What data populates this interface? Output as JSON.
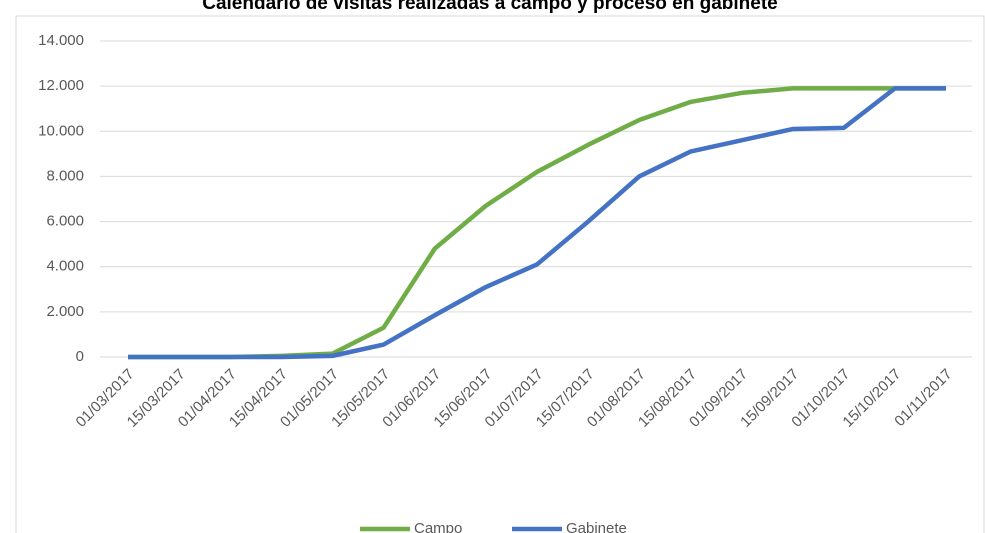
{
  "chart_data": {
    "type": "line",
    "title": "Calendario de visitas realizadas a campo y proceso en gabinete",
    "categories": [
      "01/03/2017",
      "15/03/2017",
      "01/04/2017",
      "15/04/2017",
      "01/05/2017",
      "15/05/2017",
      "01/06/2017",
      "15/06/2017",
      "01/07/2017",
      "15/07/2017",
      "01/08/2017",
      "15/08/2017",
      "01/09/2017",
      "15/09/2017",
      "01/10/2017",
      "15/10/2017",
      "01/11/2017"
    ],
    "series": [
      {
        "name": "Campo",
        "color": "#70ad47",
        "values": [
          0,
          0,
          0,
          50,
          150,
          1300,
          4800,
          6700,
          8200,
          9400,
          10500,
          11300,
          11700,
          11900,
          11900,
          11900,
          11900
        ]
      },
      {
        "name": "Gabinete",
        "color": "#4472c4",
        "values": [
          0,
          0,
          0,
          0,
          50,
          550,
          1850,
          3100,
          4100,
          6000,
          8000,
          9100,
          9600,
          10100,
          10150,
          11900,
          11900
        ]
      }
    ],
    "ylim": [
      0,
      14000
    ],
    "yticks": [
      0,
      {
        "value": 2000,
        "label": "2.000"
      },
      {
        "value": 4000,
        "label": "4.000"
      },
      {
        "value": 6000,
        "label": "6.000"
      },
      {
        "value": 8000,
        "label": "8.000"
      },
      {
        "value": 10000,
        "label": "10.000"
      },
      {
        "value": 12000,
        "label": "12.000"
      },
      {
        "value": 14000,
        "label": "14.000"
      }
    ],
    "grid": true,
    "legend": "bottom"
  }
}
